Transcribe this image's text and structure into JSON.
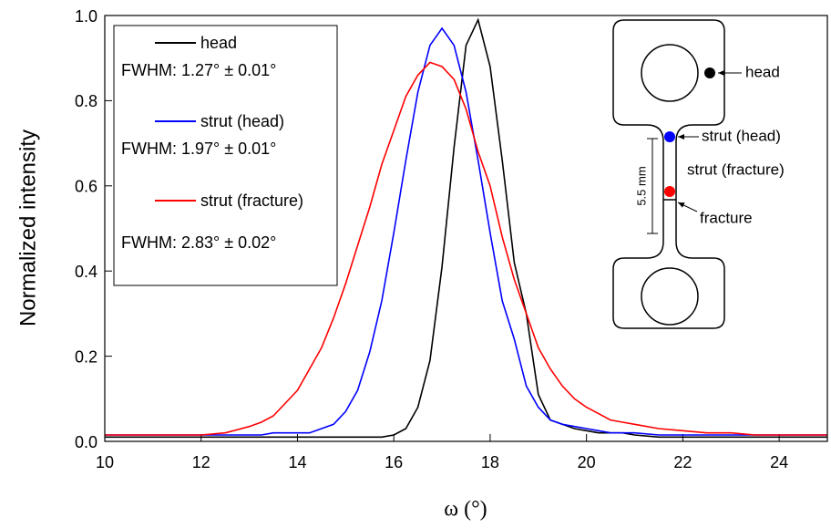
{
  "chart_data": {
    "type": "line",
    "x_label": "ω (°)",
    "y_label": "Normalized intensity",
    "x": [
      10,
      10.5,
      11,
      11.5,
      12,
      12.5,
      13,
      13.25,
      13.5,
      13.75,
      14,
      14.25,
      14.5,
      14.75,
      15,
      15.25,
      15.5,
      15.75,
      16,
      16.25,
      16.5,
      16.75,
      17,
      17.25,
      17.5,
      17.75,
      18,
      18.25,
      18.5,
      18.75,
      19,
      19.25,
      19.5,
      19.75,
      20,
      20.25,
      20.5,
      20.75,
      21,
      21.5,
      22,
      22.5,
      23,
      23.5,
      24,
      24.5,
      25
    ],
    "series": [
      {
        "name": "head",
        "note": "FWHM: 1.27° ± 0.01°",
        "color": "#000000",
        "values": [
          0.01,
          0.01,
          0.01,
          0.01,
          0.01,
          0.01,
          0.01,
          0.01,
          0.01,
          0.01,
          0.01,
          0.01,
          0.01,
          0.01,
          0.01,
          0.01,
          0.01,
          0.01,
          0.015,
          0.03,
          0.08,
          0.19,
          0.41,
          0.69,
          0.93,
          0.99,
          0.88,
          0.66,
          0.42,
          0.3,
          0.11,
          0.05,
          0.04,
          0.03,
          0.025,
          0.02,
          0.02,
          0.02,
          0.015,
          0.01,
          0.01,
          0.01,
          0.01,
          0.01,
          0.01,
          0.01,
          0.01
        ]
      },
      {
        "name": "strut (head)",
        "note": "FWHM: 1.97° ± 0.01°",
        "color": "#0000ff",
        "values": [
          0.015,
          0.015,
          0.015,
          0.015,
          0.015,
          0.015,
          0.015,
          0.015,
          0.02,
          0.02,
          0.02,
          0.02,
          0.03,
          0.04,
          0.07,
          0.12,
          0.21,
          0.33,
          0.49,
          0.66,
          0.82,
          0.93,
          0.97,
          0.93,
          0.82,
          0.66,
          0.49,
          0.33,
          0.24,
          0.13,
          0.08,
          0.05,
          0.04,
          0.035,
          0.03,
          0.025,
          0.02,
          0.02,
          0.02,
          0.015,
          0.015,
          0.015,
          0.015,
          0.015,
          0.015,
          0.015,
          0.015
        ]
      },
      {
        "name": "strut (fracture)",
        "note": "FWHM: 2.83° ± 0.02°",
        "color": "#ff0000",
        "values": [
          0.015,
          0.015,
          0.015,
          0.015,
          0.015,
          0.02,
          0.035,
          0.045,
          0.06,
          0.09,
          0.12,
          0.17,
          0.22,
          0.29,
          0.37,
          0.46,
          0.55,
          0.65,
          0.73,
          0.81,
          0.86,
          0.89,
          0.88,
          0.85,
          0.78,
          0.68,
          0.6,
          0.48,
          0.38,
          0.3,
          0.22,
          0.17,
          0.13,
          0.1,
          0.08,
          0.065,
          0.05,
          0.045,
          0.04,
          0.03,
          0.025,
          0.02,
          0.02,
          0.015,
          0.015,
          0.015,
          0.015
        ]
      }
    ],
    "xlim": [
      10,
      25
    ],
    "xticks": [
      10,
      12,
      14,
      16,
      18,
      20,
      22,
      24
    ],
    "ylim": [
      0,
      1
    ],
    "yticks": [
      {
        "value": 0,
        "label": "0.0"
      },
      0.2,
      0.4,
      0.6,
      0.8,
      {
        "value": 1,
        "label": "1.0"
      }
    ],
    "annotations": [
      "head",
      "strut (head)",
      "strut (fracture)",
      "fracture",
      "5.5 mm"
    ]
  }
}
